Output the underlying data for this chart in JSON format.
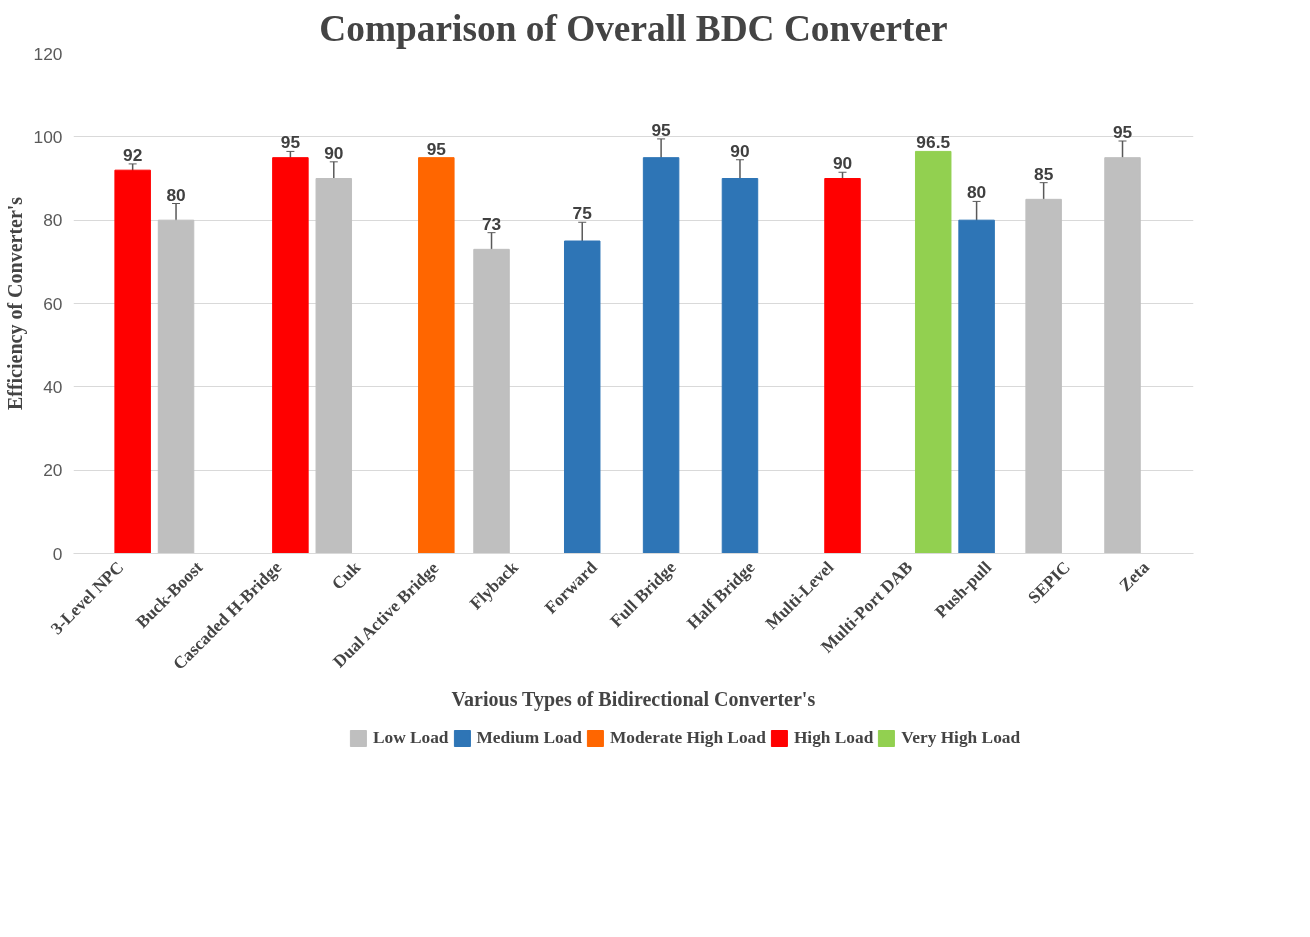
{
  "chart_data": {
    "type": "bar",
    "title": "Comparison of Overall BDC Converter",
    "xlabel": "Various Types of Bidirectional Converter's",
    "ylabel": "Efficiency of Converter's",
    "categories": [
      "3-Level NPC",
      "Buck-Boost",
      "Cascaded H-Bridge",
      "Cuk",
      "Dual Active Bridge",
      "Flyback",
      "Forward",
      "Full Bridge",
      "Half Bridge",
      "Multi-Level",
      "Multi-Port DAB",
      "Push-pull",
      "SEPIC",
      "Zeta"
    ],
    "series": [
      {
        "name": "Low Load",
        "color": "#bfbfbf",
        "values": [
          null,
          80,
          null,
          90,
          null,
          73,
          null,
          null,
          null,
          null,
          null,
          null,
          85,
          95
        ],
        "errors": [
          null,
          4,
          null,
          4,
          null,
          4,
          null,
          null,
          null,
          null,
          null,
          null,
          4,
          4
        ]
      },
      {
        "name": "Medium Load",
        "color": "#2e75b6",
        "values": [
          null,
          null,
          null,
          null,
          null,
          null,
          75,
          95,
          90,
          null,
          null,
          80,
          null,
          null
        ],
        "errors": [
          null,
          null,
          null,
          null,
          null,
          null,
          4.5,
          4.5,
          4.5,
          null,
          null,
          4.5,
          null,
          null
        ]
      },
      {
        "name": "Moderate High Load",
        "color": "#ff6600",
        "values": [
          null,
          null,
          null,
          null,
          95,
          null,
          null,
          null,
          null,
          null,
          null,
          null,
          null,
          null
        ]
      },
      {
        "name": "High Load",
        "color": "#ff0000",
        "values": [
          92,
          null,
          95,
          null,
          null,
          null,
          null,
          null,
          null,
          90,
          null,
          null,
          null,
          null
        ],
        "errors": [
          1.5,
          null,
          1.5,
          null,
          null,
          null,
          null,
          null,
          null,
          1.5,
          null,
          null,
          null,
          null
        ]
      },
      {
        "name": "Very High Load",
        "color": "#92d050",
        "values": [
          null,
          null,
          null,
          null,
          null,
          null,
          null,
          null,
          null,
          null,
          96.5,
          null,
          null,
          null
        ]
      }
    ],
    "ylim": [
      0,
      120
    ],
    "yticks": [
      0,
      20,
      40,
      60,
      80,
      100,
      120
    ],
    "grid": "y",
    "legend": "bottom",
    "data_labels": true
  }
}
